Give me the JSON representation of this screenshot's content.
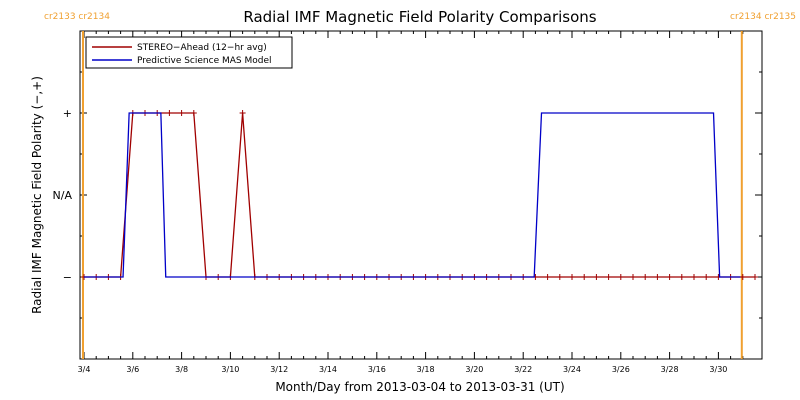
{
  "chart_data": {
    "type": "line",
    "title": "Radial IMF Magnetic Field Polarity Comparisons",
    "xlabel": "Month/Day from 2013-03-04 to 2013-03-31 (UT)",
    "ylabel": "Radial IMF Magnetic Field Polarity (−,+)",
    "x_tick_labels": [
      "3/4",
      "3/6",
      "3/8",
      "3/10",
      "3/12",
      "3/14",
      "3/16",
      "3/18",
      "3/20",
      "3/22",
      "3/24",
      "3/26",
      "3/28",
      "3/30"
    ],
    "x_tick_days": [
      0,
      2,
      4,
      6,
      8,
      10,
      12,
      14,
      16,
      18,
      20,
      22,
      24,
      26
    ],
    "xlim_days": [
      0,
      27.3
    ],
    "y_tick_labels": [
      "−",
      "N/A",
      "+"
    ],
    "y_tick_values": [
      -1,
      0,
      1
    ],
    "ylim": [
      -2,
      2
    ],
    "carrington_markers": [
      {
        "day": 0.0,
        "label": "cr2133 cr2134",
        "position": "left"
      },
      {
        "day": 27.0,
        "label": "cr2134 cr2135",
        "position": "right"
      }
    ],
    "legend_position": "top-left",
    "colors": {
      "stereo": "#a00000",
      "model": "#0000c8",
      "rotation": "#f0a030",
      "axis": "#000000"
    },
    "series": [
      {
        "name": "STEREO−Ahead (12−hr avg)",
        "marker": "plus",
        "x": [
          0,
          0.5,
          1,
          1.5,
          2,
          2.5,
          3,
          3.5,
          4,
          4.5,
          5,
          5.5,
          6,
          6.5,
          7,
          7.5,
          8,
          8.5,
          9,
          9.5,
          10,
          10.5,
          11,
          11.5,
          12,
          12.5,
          13,
          13.5,
          14,
          14.5,
          15,
          15.5,
          16,
          16.5,
          17,
          17.5,
          18,
          18.5,
          19,
          19.5,
          20,
          20.5,
          21,
          21.5,
          22,
          22.5,
          23,
          23.5,
          24,
          24.5,
          25,
          25.5,
          26,
          26.5,
          27,
          27.5
        ],
        "values": [
          -1,
          -1,
          -1,
          -1,
          1,
          1,
          1,
          1,
          1,
          1,
          -1,
          -1,
          -1,
          1,
          -1,
          -1,
          -1,
          -1,
          -1,
          -1,
          -1,
          -1,
          -1,
          -1,
          -1,
          -1,
          -1,
          -1,
          -1,
          -1,
          -1,
          -1,
          -1,
          -1,
          -1,
          -1,
          -1,
          -1,
          -1,
          -1,
          -1,
          -1,
          -1,
          -1,
          -1,
          -1,
          -1,
          -1,
          -1,
          -1,
          -1,
          -1,
          -1,
          -1,
          -1,
          -1
        ]
      },
      {
        "name": "Predictive Science MAS Model",
        "marker": "none",
        "x": [
          0,
          1.6,
          1.85,
          3.15,
          3.35,
          18.45,
          18.75,
          25.8,
          26.05,
          26.9
        ],
        "values": [
          -1,
          -1,
          1,
          1,
          -1,
          -1,
          1,
          1,
          -1,
          -1
        ]
      }
    ]
  }
}
